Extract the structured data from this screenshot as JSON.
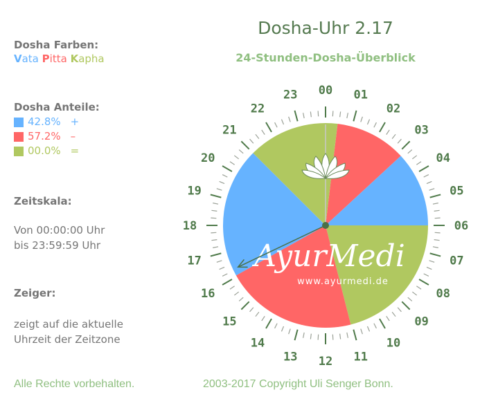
{
  "header": {
    "title": "Dosha-Uhr 2.17",
    "subtitle": "24-Stunden-Dosha-Überblick"
  },
  "colors": {
    "vata": "#66b3ff",
    "pitta": "#ff6666",
    "kapha": "#b0c860",
    "title": "#557a50",
    "accent_green": "#8fbf80",
    "text_gray": "#757575",
    "clock_dark": "#4f7a4a"
  },
  "sidebar": {
    "farben": {
      "label": "Dosha Farben:",
      "vata_cap": "V",
      "vata_rest": "ata",
      "pitta_cap": "P",
      "pitta_rest": "itta",
      "kapha_cap": "K",
      "kapha_rest": "apha"
    },
    "anteile": {
      "label": "Dosha Anteile:",
      "items": [
        {
          "dosha": "Vata",
          "value": "42.8%",
          "sign": "+"
        },
        {
          "dosha": "Pitta",
          "value": "57.2%",
          "sign": "–"
        },
        {
          "dosha": "Kapha",
          "value": "00.0%",
          "sign": "="
        }
      ]
    },
    "zeitskala": {
      "label": "Zeitskala:",
      "line1": "Von 00:00:00 Uhr",
      "line2": "bis 23:59:59 Uhr"
    },
    "zeiger": {
      "label": "Zeiger:",
      "line1": "zeigt auf die aktuelle",
      "line2": "Uhrzeit der Zeitzone"
    }
  },
  "clock": {
    "hour_labels": [
      "00",
      "01",
      "02",
      "03",
      "04",
      "05",
      "06",
      "07",
      "08",
      "09",
      "10",
      "11",
      "12",
      "13",
      "14",
      "15",
      "16",
      "17",
      "18",
      "19",
      "20",
      "21",
      "22",
      "23"
    ],
    "segments": [
      {
        "dosha": "pitta",
        "from_h": 0.45,
        "to_h": 3.15
      },
      {
        "dosha": "vata",
        "from_h": 3.15,
        "to_h": 6.0
      },
      {
        "dosha": "kapha",
        "from_h": 6.0,
        "to_h": 11.05
      },
      {
        "dosha": "pitta",
        "from_h": 11.05,
        "to_h": 16.05
      },
      {
        "dosha": "vata",
        "from_h": 16.05,
        "to_h": 21.0
      },
      {
        "dosha": "kapha",
        "from_h": 21.0,
        "to_h": 24.45
      }
    ],
    "hand_hour": 16.3,
    "logo_text": "AyurMedi",
    "logo_url_text": "www.ayurmedi.de"
  },
  "footer": {
    "rights": "Alle Rechte vorbehalten.",
    "copyright": "2003-2017 Copyright Uli Senger Bonn."
  }
}
